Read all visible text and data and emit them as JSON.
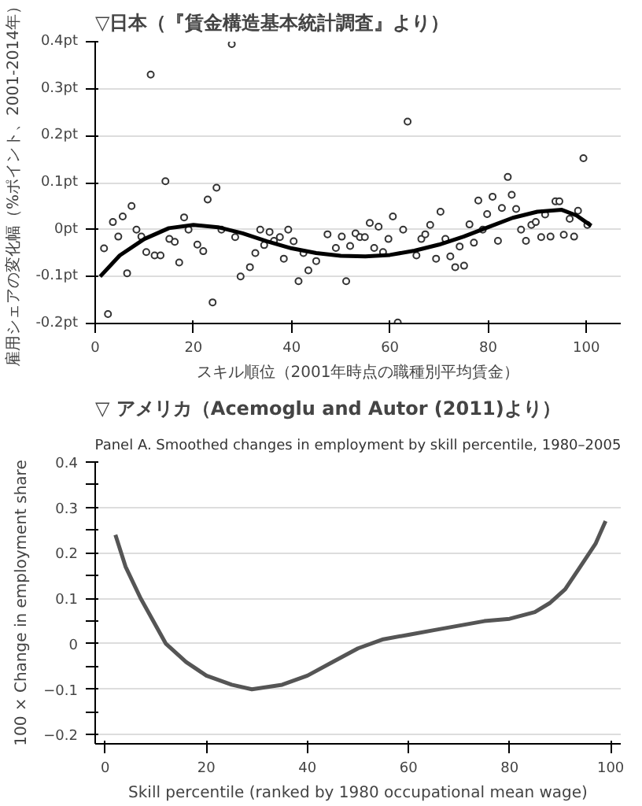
{
  "chart_data": [
    {
      "type": "scatter",
      "title": "▽日本（『賃金構造基本統計調査』より）",
      "ylabel": "雇用シェアの変化幅（%ポイント、2001-2014年）",
      "xlabel": "スキル順位（2001年時点の職種別平均賃金）",
      "xlim": [
        0,
        107
      ],
      "ylim": [
        -0.2,
        0.4
      ],
      "xticks": [
        0,
        20,
        40,
        60,
        80,
        100
      ],
      "yticks": [
        {
          "value": -0.2,
          "label": "-0.2pt"
        },
        {
          "value": -0.1,
          "label": "-0.1pt"
        },
        {
          "value": 0,
          "label": "0pt"
        },
        {
          "value": 0.1,
          "label": "0.1pt"
        },
        {
          "value": 0.2,
          "label": "0.2pt"
        },
        {
          "value": 0.3,
          "label": "0.3pt"
        },
        {
          "value": 0.4,
          "label": "0.4pt"
        }
      ],
      "grid": "y",
      "series": [
        {
          "marker": "circle",
          "color": "#333333",
          "x": [
            1.8,
            2.6,
            3.6,
            4.7,
            5.6,
            6.5,
            7.4,
            8.4,
            9.4,
            10.4,
            11.3,
            12.1,
            13.3,
            14.3,
            15.1,
            16.2,
            17.1,
            18.1,
            19,
            20.8,
            22,
            22.9,
            23.9,
            24.7,
            25.7,
            27.8,
            28.5,
            29.6,
            31.5,
            32.6,
            33.6,
            34.4,
            35.5,
            36.4,
            37.6,
            38.4,
            39.3,
            40.4,
            41.4,
            42.4,
            43.4,
            45,
            47.3,
            49,
            50.2,
            51.1,
            51.9,
            53,
            53.9,
            54.9,
            55.9,
            56.8,
            57.7,
            58.6,
            59.7,
            60.6,
            61.6,
            62.7,
            63.6,
            65.4,
            66.4,
            67.2,
            68.2,
            69.4,
            70.3,
            71.3,
            72.3,
            73.3,
            74.2,
            75.1,
            76.2,
            77.1,
            78,
            78.9,
            79.8,
            80.9,
            82,
            82.8,
            84,
            84.8,
            85.7,
            86.7,
            87.7,
            88.8,
            89.7,
            90.8,
            91.6,
            92.7,
            93.7,
            94.5,
            95.4,
            96.6,
            97.5,
            98.3,
            99.4,
            100.2
          ],
          "values": [
            -0.04,
            -0.18,
            0.016,
            -0.015,
            0.028,
            -0.093,
            0.05,
            0,
            -0.015,
            -0.048,
            0.33,
            -0.055,
            -0.055,
            0.103,
            -0.02,
            -0.026,
            -0.07,
            0.026,
            0,
            -0.032,
            -0.046,
            0.064,
            -0.155,
            0.089,
            0,
            0.395,
            -0.016,
            -0.1,
            -0.08,
            -0.05,
            0,
            -0.033,
            -0.005,
            -0.024,
            -0.016,
            -0.062,
            0,
            -0.025,
            -0.11,
            -0.05,
            -0.087,
            -0.067,
            -0.01,
            -0.039,
            -0.015,
            -0.11,
            -0.035,
            -0.008,
            -0.016,
            -0.016,
            0.014,
            -0.039,
            0.006,
            -0.048,
            -0.02,
            0.028,
            -0.198,
            0,
            0.23,
            -0.055,
            -0.02,
            -0.01,
            0.01,
            -0.062,
            0.038,
            -0.02,
            -0.057,
            -0.08,
            -0.036,
            -0.077,
            0.011,
            -0.028,
            0.062,
            0,
            0.033,
            0.07,
            -0.024,
            0.046,
            0.112,
            0.074,
            0.044,
            0,
            -0.024,
            0.01,
            0.016,
            -0.016,
            0.032,
            -0.015,
            0.06,
            0.06,
            -0.011,
            0.023,
            -0.015,
            0.04,
            0.152,
            0.01
          ]
        },
        {
          "type": "line",
          "color": "#000000",
          "x": [
            1,
            5,
            10,
            15,
            20,
            25,
            30,
            35,
            40,
            45,
            50,
            55,
            60,
            65,
            70,
            75,
            80,
            85,
            90,
            95,
            98,
            101
          ],
          "values": [
            -0.1,
            -0.055,
            -0.02,
            0.003,
            0.01,
            0.005,
            -0.008,
            -0.025,
            -0.04,
            -0.05,
            -0.056,
            -0.057,
            -0.054,
            -0.045,
            -0.032,
            -0.015,
            0.005,
            0.025,
            0.038,
            0.042,
            0.03,
            0.008
          ]
        }
      ]
    },
    {
      "type": "line",
      "title": "▽ アメリカ（Acemoglu and Autor (2011)より）",
      "subtitle": "Panel A. Smoothed changes in employment by skill percentile, 1980–2005",
      "ylabel": "100 × Change in employment share",
      "xlabel": "Skill percentile (ranked by 1980 occupational mean wage)",
      "xlim": [
        -2,
        102
      ],
      "ylim": [
        -0.22,
        0.4
      ],
      "xticks": [
        0,
        20,
        40,
        60,
        80,
        100
      ],
      "yticks": [
        {
          "value": -0.2,
          "label": "−0.2"
        },
        {
          "value": -0.15,
          "label": null
        },
        {
          "value": -0.1,
          "label": "−0.1"
        },
        {
          "value": -0.05,
          "label": null
        },
        {
          "value": 0,
          "label": "0"
        },
        {
          "value": 0.05,
          "label": null
        },
        {
          "value": 0.1,
          "label": "0.1"
        },
        {
          "value": 0.15,
          "label": null
        },
        {
          "value": 0.2,
          "label": "0.2"
        },
        {
          "value": 0.25,
          "label": null
        },
        {
          "value": 0.3,
          "label": "0.3"
        },
        {
          "value": 0.35,
          "label": null
        },
        {
          "value": 0.4,
          "label": "0.4"
        }
      ],
      "grid": "y",
      "series": [
        {
          "color": "#555555",
          "x": [
            2,
            4,
            7,
            12,
            16,
            20,
            25,
            29,
            35,
            40,
            45,
            50,
            55,
            60,
            65,
            70,
            75,
            80,
            85,
            88,
            91,
            94,
            97,
            99
          ],
          "values": [
            0.24,
            0.17,
            0.1,
            0,
            -0.04,
            -0.07,
            -0.09,
            -0.1,
            -0.09,
            -0.07,
            -0.04,
            -0.01,
            0.01,
            0.02,
            0.03,
            0.04,
            0.05,
            0.055,
            0.07,
            0.09,
            0.12,
            0.17,
            0.22,
            0.27
          ]
        }
      ]
    }
  ]
}
